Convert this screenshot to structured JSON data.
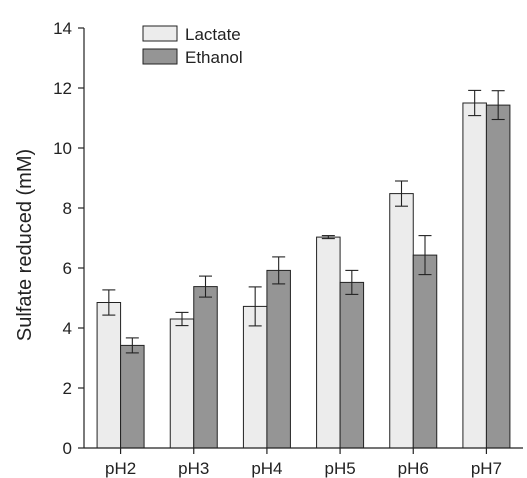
{
  "chart_data": {
    "type": "bar",
    "title": "",
    "xlabel": "",
    "ylabel": "Sulfate reduced (mM)",
    "ylim": [
      0,
      14
    ],
    "yticks": [
      0,
      2,
      4,
      6,
      8,
      10,
      12,
      14
    ],
    "categories": [
      "pH2",
      "pH3",
      "pH4",
      "pH5",
      "pH6",
      "pH7"
    ],
    "legend_position": "top-left",
    "grid": false,
    "series": [
      {
        "name": "Lactate",
        "color": "#ececec",
        "values": [
          4.85,
          4.3,
          4.72,
          7.03,
          8.48,
          11.5
        ],
        "errors": [
          0.42,
          0.22,
          0.65,
          0.05,
          0.42,
          0.42
        ]
      },
      {
        "name": "Ethanol",
        "color": "#959595",
        "values": [
          3.42,
          5.38,
          5.92,
          5.52,
          6.43,
          11.43
        ],
        "errors": [
          0.25,
          0.35,
          0.45,
          0.4,
          0.65,
          0.48
        ]
      }
    ]
  }
}
